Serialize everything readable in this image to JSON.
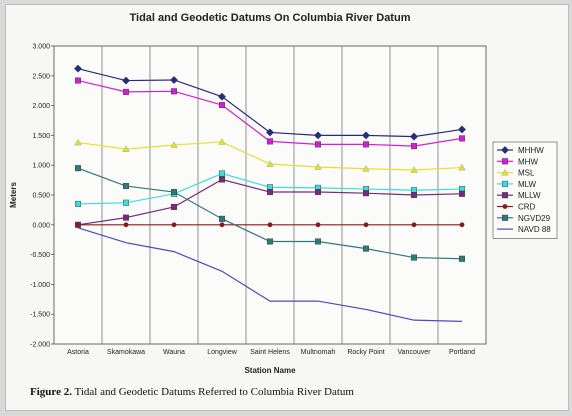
{
  "chart_data": {
    "type": "line",
    "title": "Tidal and Geodetic Datums On Columbia River Datum",
    "xlabel": "Station Name",
    "ylabel": "Meters",
    "ylim": [
      -2.0,
      3.0
    ],
    "yticks": [
      "3.000",
      "2.500",
      "2.000",
      "1.500",
      "1.000",
      "0.500",
      "0.000",
      "-0.500",
      "-1.000",
      "-1.500",
      "-2.000"
    ],
    "ytick_values": [
      3.0,
      2.5,
      2.0,
      1.5,
      1.0,
      0.5,
      0.0,
      -0.5,
      -1.0,
      -1.5,
      -2.0
    ],
    "grid": "vertical",
    "legend_position": "right",
    "categories": [
      "Astoria",
      "Skamokawa",
      "Wauna",
      "Longview",
      "Saint Helens",
      "Multnomah",
      "Rocky Point",
      "Vancouver",
      "Portland"
    ],
    "series": [
      {
        "name": "MHHW",
        "color": "#2b2b7a",
        "marker": "diamond",
        "values": [
          2.62,
          2.42,
          2.43,
          2.15,
          1.55,
          1.5,
          1.5,
          1.48,
          1.6
        ]
      },
      {
        "name": "MHW",
        "color": "#d21fd2",
        "marker": "square",
        "values": [
          2.42,
          2.23,
          2.24,
          2.01,
          1.4,
          1.35,
          1.35,
          1.32,
          1.45
        ]
      },
      {
        "name": "MSL",
        "color": "#e2e22a",
        "marker": "triangle",
        "values": [
          1.38,
          1.27,
          1.34,
          1.39,
          1.02,
          0.97,
          0.94,
          0.92,
          0.96
        ]
      },
      {
        "name": "MLW",
        "color": "#40dcdc",
        "marker": "square",
        "values": [
          0.35,
          0.37,
          0.52,
          0.86,
          0.63,
          0.62,
          0.6,
          0.58,
          0.6
        ]
      },
      {
        "name": "MLLW",
        "color": "#7a2a7a",
        "marker": "square",
        "values": [
          0.0,
          0.12,
          0.3,
          0.76,
          0.55,
          0.55,
          0.53,
          0.5,
          0.52
        ]
      },
      {
        "name": "CRD",
        "color": "#8a1a1a",
        "marker": "circle",
        "values": [
          0.0,
          0.0,
          0.0,
          0.0,
          0.0,
          0.0,
          0.0,
          0.0,
          0.0
        ]
      },
      {
        "name": "NGVD29",
        "color": "#2e7a7a",
        "marker": "square",
        "values": [
          0.95,
          0.65,
          0.55,
          0.1,
          -0.28,
          -0.28,
          -0.4,
          -0.55,
          -0.57
        ]
      },
      {
        "name": "NAVD 88",
        "color": "#4b4bb8",
        "marker": "none",
        "values": [
          -0.05,
          -0.3,
          -0.45,
          -0.78,
          -1.28,
          -1.28,
          -1.42,
          -1.6,
          -1.62
        ]
      }
    ]
  },
  "caption": {
    "label": "Figure 2.",
    "text": "  Tidal and Geodetic Datums Referred to Columbia River Datum"
  }
}
